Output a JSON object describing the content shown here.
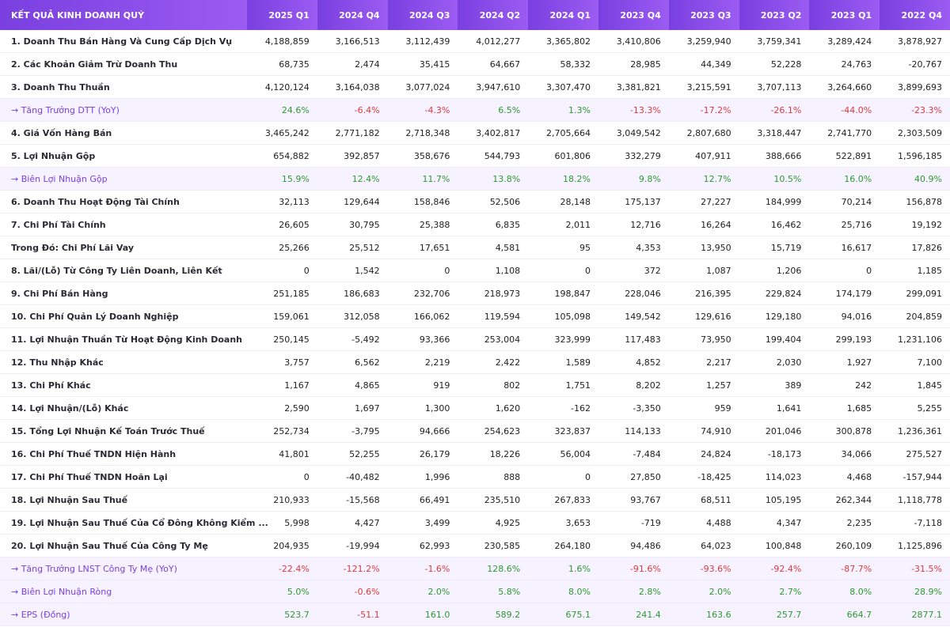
{
  "table": {
    "header": [
      "KẾT QUẢ KINH DOANH QUÝ",
      "2025 Q1",
      "2024 Q4",
      "2024 Q3",
      "2024 Q2",
      "2024 Q1",
      "2023 Q4",
      "2023 Q3",
      "2023 Q2",
      "2023 Q1",
      "2022 Q4"
    ],
    "rows": [
      [
        "1. Doanh Thu Bán Hàng Và Cung Cấp Dịch Vụ",
        "4,188,859",
        "3,166,513",
        "3,112,439",
        "4,012,277",
        "3,365,802",
        "3,410,806",
        "3,259,940",
        "3,759,341",
        "3,289,424",
        "3,878,927"
      ],
      [
        "2. Các Khoản Giảm Trừ Doanh Thu",
        "68,735",
        "2,474",
        "35,415",
        "64,667",
        "58,332",
        "28,985",
        "44,349",
        "52,228",
        "24,763",
        "-20,767"
      ],
      [
        "3. Doanh Thu Thuần",
        "4,120,124",
        "3,164,038",
        "3,077,024",
        "3,947,610",
        "3,307,470",
        "3,381,821",
        "3,215,591",
        "3,707,113",
        "3,264,660",
        "3,899,693"
      ],
      [
        "→ Tăng Trưởng DTT (YoY)",
        "24.6%",
        "-6.4%",
        "-4.3%",
        "6.5%",
        "1.3%",
        "-13.3%",
        "-17.2%",
        "-26.1%",
        "-44.0%",
        "-23.3%"
      ],
      [
        "4. Giá Vốn Hàng Bán",
        "3,465,242",
        "2,771,182",
        "2,718,348",
        "3,402,817",
        "2,705,664",
        "3,049,542",
        "2,807,680",
        "3,318,447",
        "2,741,770",
        "2,303,509"
      ],
      [
        "5. Lợi Nhuận Gộp",
        "654,882",
        "392,857",
        "358,676",
        "544,793",
        "601,806",
        "332,279",
        "407,911",
        "388,666",
        "522,891",
        "1,596,185"
      ],
      [
        "→ Biên Lợi Nhuận Gộp",
        "15.9%",
        "12.4%",
        "11.7%",
        "13.8%",
        "18.2%",
        "9.8%",
        "12.7%",
        "10.5%",
        "16.0%",
        "40.9%"
      ],
      [
        "6. Doanh Thu Hoạt Động Tài Chính",
        "32,113",
        "129,644",
        "158,846",
        "52,506",
        "28,148",
        "175,137",
        "27,227",
        "184,999",
        "70,214",
        "156,878"
      ],
      [
        "7. Chi Phí Tài Chính",
        "26,605",
        "30,795",
        "25,388",
        "6,835",
        "2,011",
        "12,716",
        "16,264",
        "16,462",
        "25,716",
        "19,192"
      ],
      [
        "Trong Đó: Chi Phí Lãi Vay",
        "25,266",
        "25,512",
        "17,651",
        "4,581",
        "95",
        "4,353",
        "13,950",
        "15,719",
        "16,617",
        "17,826"
      ],
      [
        "8. Lãi/(Lỗ) Từ Công Ty Liên Doanh, Liên Kết",
        "0",
        "1,542",
        "0",
        "1,108",
        "0",
        "372",
        "1,087",
        "1,206",
        "0",
        "1,185"
      ],
      [
        "9. Chi Phí Bán Hàng",
        "251,185",
        "186,683",
        "232,706",
        "218,973",
        "198,847",
        "228,046",
        "216,395",
        "229,824",
        "174,179",
        "299,091"
      ],
      [
        "10. Chi Phí Quản Lý Doanh Nghiệp",
        "159,061",
        "312,058",
        "166,062",
        "119,594",
        "105,098",
        "149,542",
        "129,616",
        "129,180",
        "94,016",
        "204,859"
      ],
      [
        "11. Lợi Nhuận Thuần Từ Hoạt Động Kinh Doanh",
        "250,145",
        "-5,492",
        "93,366",
        "253,004",
        "323,999",
        "117,483",
        "73,950",
        "199,404",
        "299,193",
        "1,231,106"
      ],
      [
        "12. Thu Nhập Khác",
        "3,757",
        "6,562",
        "2,219",
        "2,422",
        "1,589",
        "4,852",
        "2,217",
        "2,030",
        "1,927",
        "7,100"
      ],
      [
        "13. Chi Phí Khác",
        "1,167",
        "4,865",
        "919",
        "802",
        "1,751",
        "8,202",
        "1,257",
        "389",
        "242",
        "1,845"
      ],
      [
        "14. Lợi Nhuận/(Lỗ) Khác",
        "2,590",
        "1,697",
        "1,300",
        "1,620",
        "-162",
        "-3,350",
        "959",
        "1,641",
        "1,685",
        "5,255"
      ],
      [
        "15. Tổng Lợi Nhuận Kế Toán Trước Thuế",
        "252,734",
        "-3,795",
        "94,666",
        "254,623",
        "323,837",
        "114,133",
        "74,910",
        "201,046",
        "300,878",
        "1,236,361"
      ],
      [
        "16. Chi Phí Thuế TNDN Hiện Hành",
        "41,801",
        "52,255",
        "26,179",
        "18,226",
        "56,004",
        "-7,484",
        "24,824",
        "-18,173",
        "34,066",
        "275,527"
      ],
      [
        "17. Chi Phí Thuế TNDN Hoãn Lại",
        "0",
        "-40,482",
        "1,996",
        "888",
        "0",
        "27,850",
        "-18,425",
        "114,023",
        "4,468",
        "-157,944"
      ],
      [
        "18. Lợi Nhuận Sau Thuế",
        "210,933",
        "-15,568",
        "66,491",
        "235,510",
        "267,833",
        "93,767",
        "68,511",
        "105,195",
        "262,344",
        "1,118,778"
      ],
      [
        "19. Lợi Nhuận Sau Thuế Của Cổ Đông Không Kiểm ...",
        "5,998",
        "4,427",
        "3,499",
        "4,925",
        "3,653",
        "-719",
        "4,488",
        "4,347",
        "2,235",
        "-7,118"
      ],
      [
        "20. Lợi Nhuận Sau Thuế Của Công Ty Mẹ",
        "204,935",
        "-19,994",
        "62,993",
        "230,585",
        "264,180",
        "94,486",
        "64,023",
        "100,848",
        "260,109",
        "1,125,896"
      ],
      [
        "→ Tăng Trưởng LNST Công Ty Mẹ (YoY)",
        "-22.4%",
        "-121.2%",
        "-1.6%",
        "128.6%",
        "1.6%",
        "-91.6%",
        "-93.6%",
        "-92.4%",
        "-87.7%",
        "-31.5%"
      ],
      [
        "→ Biên Lợi Nhuận Ròng",
        "5.0%",
        "-0.6%",
        "2.0%",
        "5.8%",
        "8.0%",
        "2.8%",
        "2.0%",
        "2.7%",
        "8.0%",
        "28.9%"
      ],
      [
        "→ EPS (Đồng)",
        "523.7",
        "-51.1",
        "161.0",
        "589.2",
        "675.1",
        "241.4",
        "163.6",
        "257.7",
        "664.7",
        "2877.1"
      ]
    ]
  }
}
